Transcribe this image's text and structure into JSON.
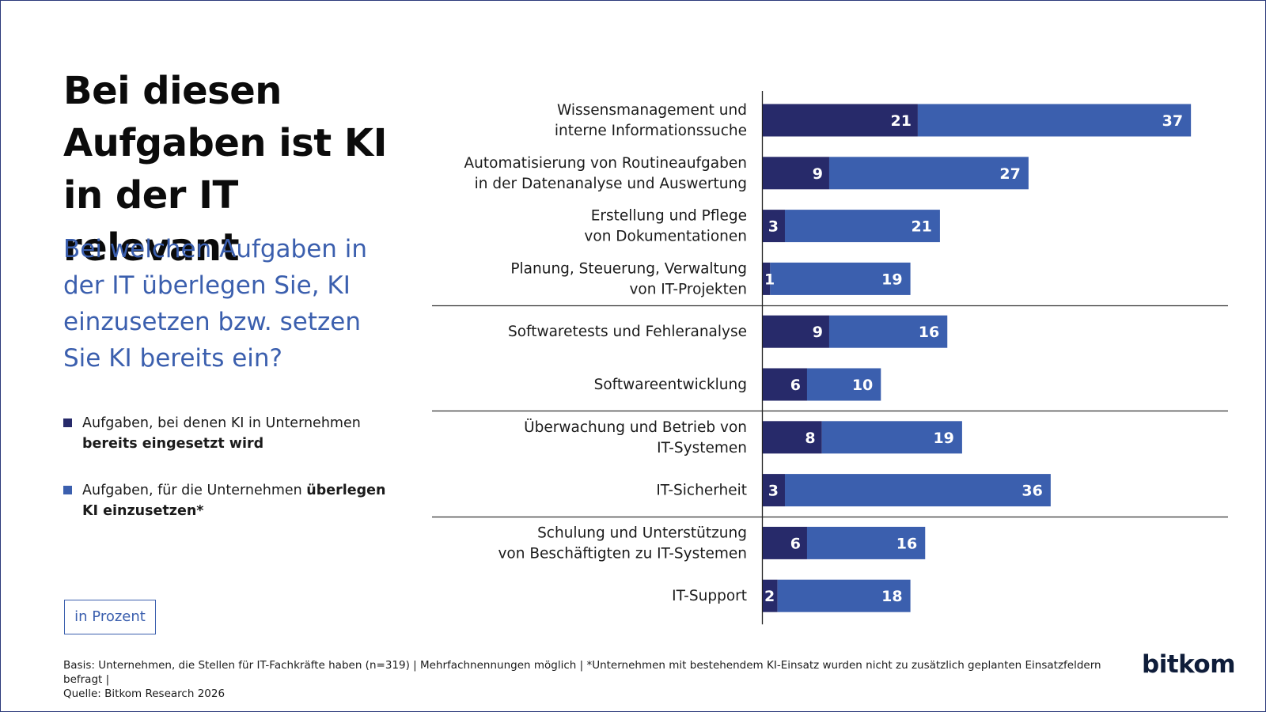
{
  "title_lines": [
    "Bei diesen",
    "Aufgaben ist KI",
    "in der IT relevant"
  ],
  "subtitle": "Bei welchen Aufgaben in der IT überlegen Sie, KI einzusetzen bzw. setzen Sie KI bereits ein?",
  "legend": [
    {
      "plain": "Aufgaben, bei denen KI in Unternehmen ",
      "bold": "bereits eingesetzt wird",
      "color": "#272a6a"
    },
    {
      "plain": "Aufgaben, für die Unternehmen ",
      "bold": "überlegen KI einzusetzen*",
      "color": "#3b5fae"
    }
  ],
  "unit_label": "in Prozent",
  "footer_lines": [
    "Basis: Unternehmen, die Stellen für IT-Fachkräfte haben (n=319) | Mehrfachnennungen möglich | *Unternehmen mit bestehendem KI-Einsatz wurden nicht zu zusätzlich geplanten Einsatzfeldern befragt |",
    "Quelle: Bitkom Research 2026"
  ],
  "logo": "bitkom",
  "chart_data": {
    "type": "bar",
    "orientation": "horizontal",
    "stacked": true,
    "categories": [
      [
        "Wissensmanagement und",
        "interne Informationssuche"
      ],
      [
        "Automatisierung von Routineaufgaben",
        "in der Datenanalyse und Auswertung"
      ],
      [
        "Erstellung und Pflege",
        "von Dokumentationen"
      ],
      [
        "Planung, Steuerung, Verwaltung",
        "von IT-Projekten"
      ],
      [
        "Softwaretests und Fehleranalyse"
      ],
      [
        "Softwareentwicklung"
      ],
      [
        "Überwachung und Betrieb von",
        "IT-Systemen"
      ],
      [
        "IT-Sicherheit"
      ],
      [
        "Schulung und Unterstützung",
        "von Beschäftigten zu IT-Systemen"
      ],
      [
        "IT-Support"
      ]
    ],
    "series": [
      {
        "values": [
          21,
          9,
          3,
          1,
          9,
          6,
          8,
          3,
          6,
          2
        ],
        "color": "#272a6a"
      },
      {
        "values": [
          37,
          27,
          21,
          19,
          16,
          10,
          19,
          36,
          16,
          18
        ],
        "color": "#3b5fae"
      }
    ],
    "group_separators_after": [
      3,
      5,
      7
    ],
    "xlim": [
      0,
      60
    ],
    "grid": false
  }
}
